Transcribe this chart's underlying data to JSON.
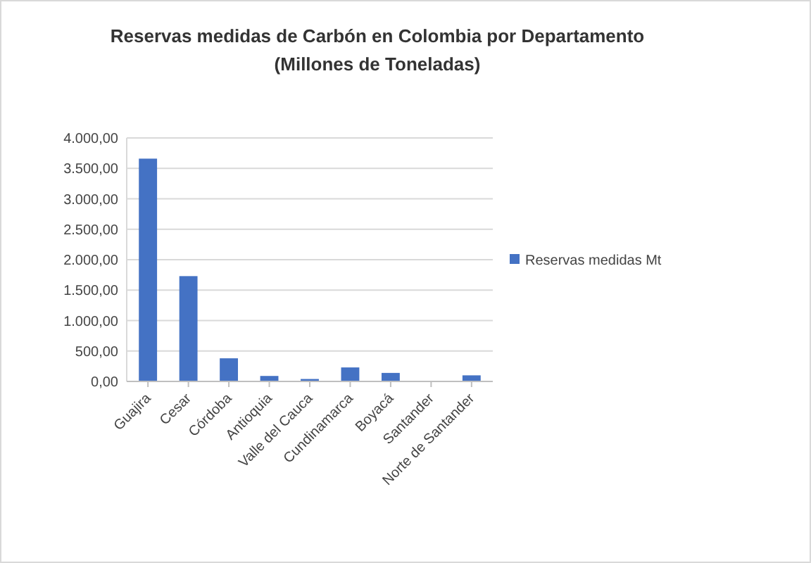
{
  "chart_data": {
    "type": "bar",
    "title": "Reservas medidas de Carbón en Colombia por Departamento",
    "subtitle": "(Millones de Toneladas)",
    "categories": [
      "Guajira",
      "Cesar",
      "Córdoba",
      "Antioquia",
      "Valle del Cauca",
      "Cundinamarca",
      "Boyacá",
      "Santander",
      "Norte de Santander"
    ],
    "series": [
      {
        "name": "Reservas medidas Mt",
        "color": "#4472c4",
        "values": [
          3660,
          1730,
          380,
          90,
          40,
          230,
          140,
          0,
          100
        ]
      }
    ],
    "ylim": [
      0,
      4000
    ],
    "yticks": [
      {
        "value": 0,
        "label": "0,00"
      },
      {
        "value": 500,
        "label": "500,00"
      },
      {
        "value": 1000,
        "label": "1.000,00"
      },
      {
        "value": 1500,
        "label": "1.500,00"
      },
      {
        "value": 2000,
        "label": "2.000,00"
      },
      {
        "value": 2500,
        "label": "2.500,00"
      },
      {
        "value": 3000,
        "label": "3.000,00"
      },
      {
        "value": 3500,
        "label": "3.500,00"
      },
      {
        "value": 4000,
        "label": "4.000,00"
      }
    ],
    "grid": "y",
    "legend": "right"
  }
}
